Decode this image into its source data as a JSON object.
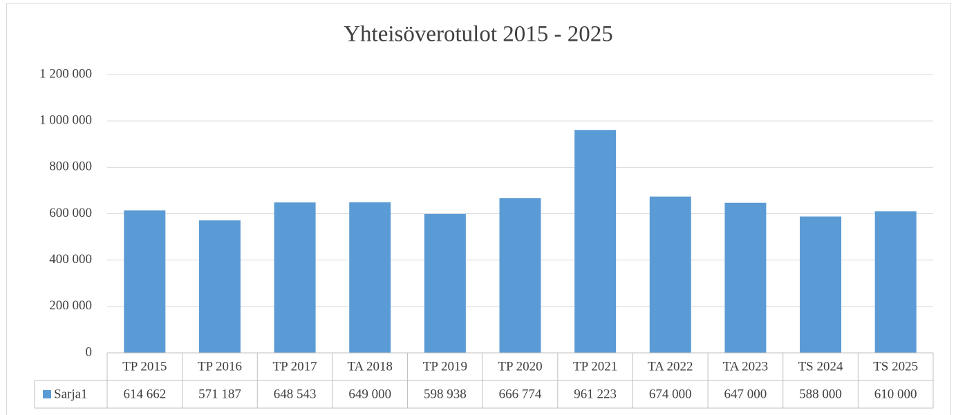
{
  "chart_data": {
    "type": "bar",
    "title": "Yhteisöverotulot 2015 - 2025",
    "categories": [
      "TP 2015",
      "TP 2016",
      "TP 2017",
      "TA 2018",
      "TP 2019",
      "TP 2020",
      "TP 2021",
      "TA 2022",
      "TA 2023",
      "TS 2024",
      "TS 2025"
    ],
    "series": [
      {
        "name": "Sarja1",
        "color": "#5b9bd5",
        "values": [
          614662,
          571187,
          648543,
          649000,
          598938,
          666774,
          961223,
          674000,
          647000,
          588000,
          610000
        ],
        "value_labels": [
          "614 662",
          "571 187",
          "648 543",
          "649 000",
          "598 938",
          "666 774",
          "961 223",
          "674 000",
          "647 000",
          "588 000",
          "610 000"
        ]
      }
    ],
    "ylim": [
      0,
      1200000
    ],
    "yticks": [
      0,
      {
        "value": 200000,
        "label": "200 000"
      },
      {
        "value": 400000,
        "label": "400 000"
      },
      {
        "value": 600000,
        "label": "600 000"
      },
      {
        "value": 800000,
        "label": "800 000"
      },
      {
        "value": 1000000,
        "label": "1 000 000"
      },
      {
        "value": 1200000,
        "label": "1 200 000"
      }
    ],
    "grid": true,
    "data_table": true
  }
}
